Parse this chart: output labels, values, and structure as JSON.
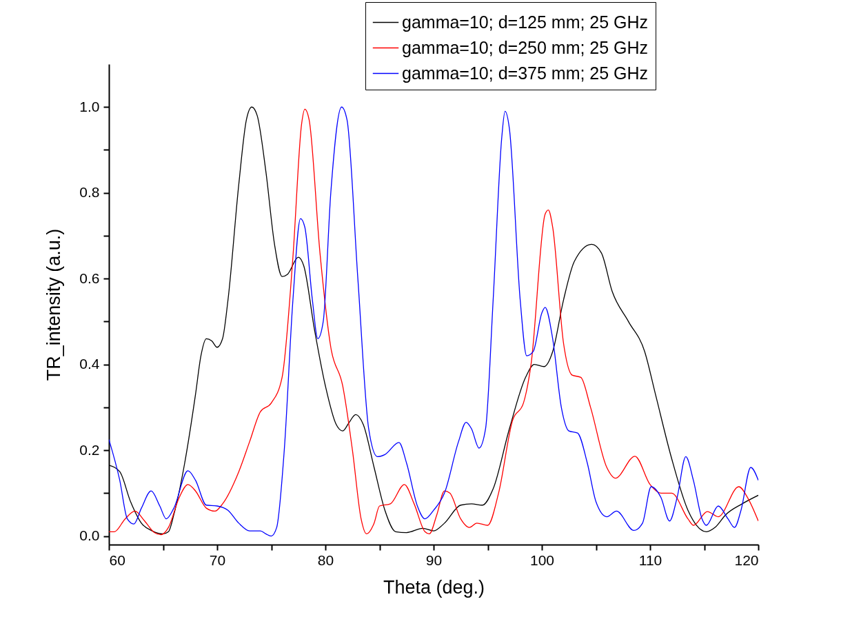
{
  "chart_data": {
    "type": "line",
    "xlabel": "Theta (deg.)",
    "ylabel": "TR_intensity (a.u.)",
    "legend": "top right",
    "xlim": [
      60,
      120
    ],
    "ylim": [
      -0.02,
      1.1
    ],
    "xticks": [
      60,
      {
        "value": 65,
        "label": null
      },
      70,
      {
        "value": 75,
        "label": null
      },
      80,
      {
        "value": 85,
        "label": null
      },
      90,
      {
        "value": 95,
        "label": null
      },
      100,
      {
        "value": 105,
        "label": null
      },
      110,
      {
        "value": 115,
        "label": null
      },
      120
    ],
    "yticks": [
      {
        "value": 0,
        "label": "0.0"
      },
      {
        "value": 0.1,
        "label": null
      },
      {
        "value": 0.2,
        "label": "0.2"
      },
      {
        "value": 0.3,
        "label": null
      },
      {
        "value": 0.4,
        "label": "0.4"
      },
      {
        "value": 0.5,
        "label": null
      },
      {
        "value": 0.6,
        "label": "0.6"
      },
      {
        "value": 0.7,
        "label": null
      },
      {
        "value": 0.8,
        "label": "0.8"
      },
      {
        "value": 0.9,
        "label": null
      },
      {
        "value": 1.0,
        "label": "1.0"
      }
    ],
    "series": [
      {
        "name": "gamma=10; d=125 mm; 25 GHz",
        "color": "#000000",
        "x": [
          60,
          61,
          62,
          63,
          64,
          65,
          65.5,
          66,
          67,
          68,
          68.5,
          69,
          69.5,
          70,
          70.5,
          71,
          72,
          72.7,
          73.2,
          73.7,
          74.5,
          75.3,
          76,
          76.5,
          77.5,
          78,
          79,
          80,
          81,
          81.6,
          82.2,
          82.8,
          83.5,
          84.5,
          85.5,
          86.5,
          87.5,
          89,
          90,
          91,
          92.5,
          93.5,
          94.5,
          95.5,
          97,
          98.5,
          99.3,
          100.2,
          101,
          102,
          103,
          104.6,
          105.5,
          106.5,
          108,
          109.5,
          110.5,
          112,
          113.5,
          115.2,
          116,
          117,
          118.5,
          120
        ],
        "values": [
          0.165,
          0.15,
          0.08,
          0.03,
          0.012,
          0.005,
          0.01,
          0.05,
          0.17,
          0.33,
          0.42,
          0.46,
          0.455,
          0.44,
          0.46,
          0.55,
          0.82,
          0.97,
          1.0,
          0.98,
          0.85,
          0.68,
          0.605,
          0.61,
          0.65,
          0.63,
          0.48,
          0.35,
          0.26,
          0.245,
          0.265,
          0.283,
          0.26,
          0.16,
          0.06,
          0.01,
          0.008,
          0.018,
          0.012,
          0.03,
          0.072,
          0.075,
          0.072,
          0.11,
          0.25,
          0.37,
          0.4,
          0.395,
          0.43,
          0.55,
          0.64,
          0.68,
          0.66,
          0.57,
          0.5,
          0.43,
          0.33,
          0.18,
          0.06,
          0.01,
          0.02,
          0.05,
          0.075,
          0.095
        ]
      },
      {
        "name": "gamma=10; d=250 mm; 25 GHz",
        "color": "#ff0000",
        "x": [
          60,
          60.5,
          61.5,
          62.4,
          63.3,
          64.2,
          64.8,
          65.5,
          66.5,
          67.3,
          68,
          69,
          69.8,
          70.5,
          72,
          73,
          74,
          75,
          76,
          77,
          77.8,
          78.1,
          78.5,
          79.5,
          80.5,
          81.6,
          82.5,
          83.3,
          83.8,
          84.5,
          85,
          86,
          87.3,
          88.2,
          89.2,
          89.6,
          90.3,
          91,
          91.5,
          92.5,
          93.3,
          94,
          95,
          96,
          97.3,
          98.3,
          99,
          100.3,
          100.6,
          101,
          102,
          102.8,
          103.6,
          104.5,
          106,
          106.8,
          108.6,
          110,
          111,
          112,
          113.5,
          114,
          115.3,
          116.3,
          118.2,
          119,
          120
        ],
        "values": [
          0.01,
          0.01,
          0.04,
          0.058,
          0.035,
          0.008,
          0.003,
          0.02,
          0.09,
          0.12,
          0.105,
          0.065,
          0.058,
          0.075,
          0.15,
          0.22,
          0.29,
          0.31,
          0.37,
          0.65,
          0.96,
          0.995,
          0.97,
          0.66,
          0.44,
          0.35,
          0.2,
          0.04,
          0.005,
          0.03,
          0.07,
          0.075,
          0.12,
          0.075,
          0.01,
          0.005,
          0.05,
          0.105,
          0.1,
          0.04,
          0.02,
          0.03,
          0.025,
          0.1,
          0.27,
          0.31,
          0.4,
          0.75,
          0.76,
          0.72,
          0.45,
          0.375,
          0.37,
          0.3,
          0.16,
          0.135,
          0.186,
          0.12,
          0.1,
          0.1,
          0.04,
          0.025,
          0.057,
          0.045,
          0.115,
          0.09,
          0.035
        ]
      },
      {
        "name": "gamma=10; d=375 mm; 25 GHz",
        "color": "#0000ff",
        "x": [
          60,
          61,
          61.7,
          62.3,
          63,
          63.9,
          64.7,
          65.3,
          66,
          67.3,
          68,
          69,
          70,
          71,
          72,
          73,
          74,
          74.5,
          75,
          75.5,
          76.2,
          77,
          77.7,
          78.1,
          78.8,
          79.3,
          79.8,
          80.5,
          81.5,
          82,
          83,
          84,
          84.8,
          85.5,
          86.8,
          87.5,
          88.5,
          89.2,
          90,
          91,
          92.3,
          93,
          93.5,
          94.2,
          94.8,
          95.5,
          96.3,
          96.6,
          97,
          98,
          98.6,
          99.2,
          100,
          100.3,
          101,
          101.8,
          102.5,
          103.3,
          104.2,
          105,
          106,
          106.9,
          108.5,
          109.3,
          110.1,
          111,
          111.8,
          112.5,
          113.3,
          114,
          114.8,
          115.2,
          116.3,
          117.2,
          117.8,
          118.4,
          119.3,
          120
        ],
        "values": [
          0.225,
          0.13,
          0.04,
          0.028,
          0.065,
          0.105,
          0.07,
          0.04,
          0.065,
          0.152,
          0.13,
          0.072,
          0.07,
          0.06,
          0.03,
          0.012,
          0.012,
          0.005,
          0.0,
          0.02,
          0.2,
          0.55,
          0.74,
          0.72,
          0.55,
          0.46,
          0.5,
          0.8,
          1.0,
          0.97,
          0.6,
          0.25,
          0.185,
          0.19,
          0.218,
          0.17,
          0.07,
          0.04,
          0.06,
          0.1,
          0.22,
          0.265,
          0.25,
          0.205,
          0.25,
          0.55,
          0.93,
          0.99,
          0.95,
          0.55,
          0.42,
          0.43,
          0.52,
          0.533,
          0.46,
          0.3,
          0.245,
          0.24,
          0.17,
          0.08,
          0.045,
          0.058,
          0.013,
          0.03,
          0.115,
          0.09,
          0.035,
          0.09,
          0.185,
          0.13,
          0.04,
          0.025,
          0.07,
          0.04,
          0.02,
          0.06,
          0.16,
          0.13
        ]
      }
    ]
  }
}
